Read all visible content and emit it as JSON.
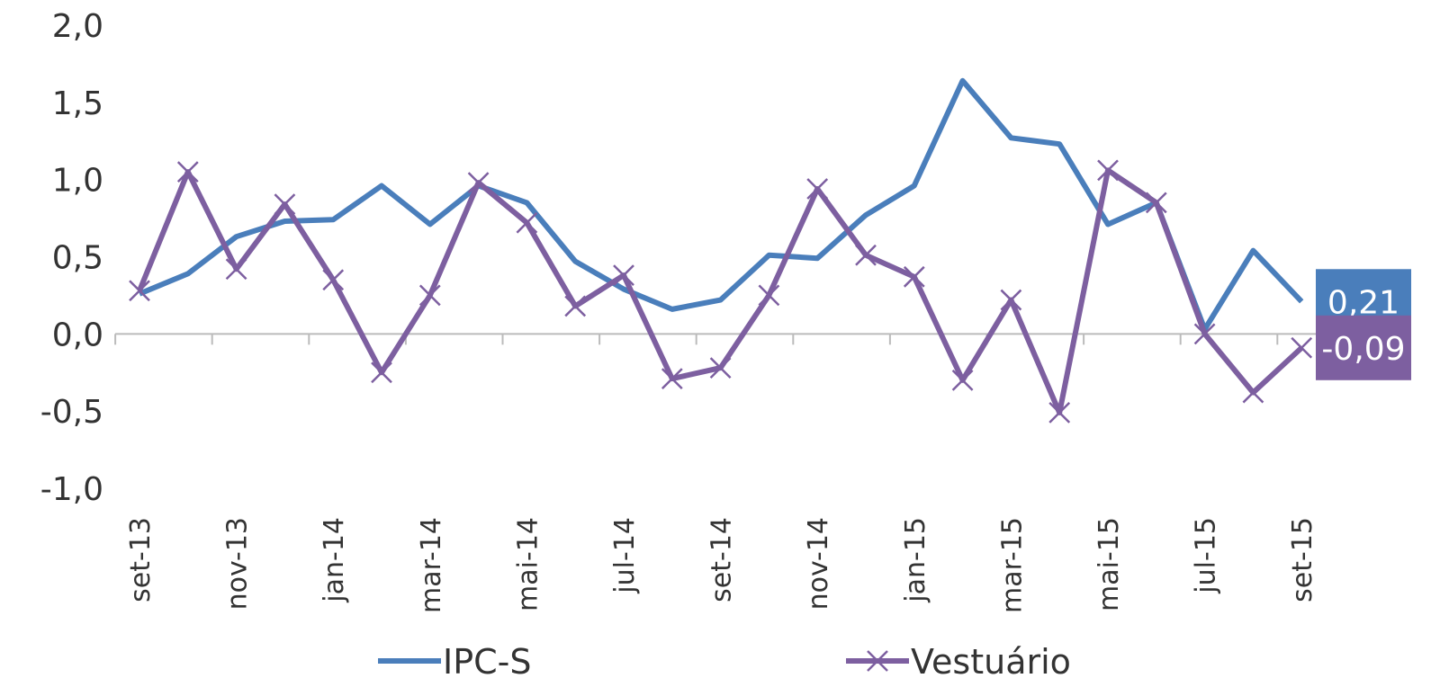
{
  "chart_data": {
    "type": "line",
    "categories": [
      "set-13",
      null,
      "nov-13",
      null,
      "jan-14",
      null,
      "mar-14",
      null,
      "mai-14",
      null,
      "jul-14",
      null,
      "set-14",
      null,
      "nov-14",
      null,
      "jan-15",
      null,
      "mar-15",
      null,
      "mai-15",
      null,
      "jul-15",
      null,
      "set-15"
    ],
    "series": [
      {
        "name": "IPC-S",
        "color": "#4a7ebb",
        "marker": "none",
        "values": [
          0.26,
          0.39,
          0.63,
          0.73,
          0.74,
          0.96,
          0.71,
          0.96,
          0.85,
          0.47,
          0.29,
          0.16,
          0.22,
          0.51,
          0.49,
          0.77,
          0.96,
          1.64,
          1.27,
          1.23,
          0.71,
          0.85,
          0.03,
          0.54,
          0.21
        ],
        "value_labels": [
          null,
          null,
          null,
          null,
          null,
          null,
          null,
          null,
          null,
          null,
          null,
          null,
          null,
          null,
          null,
          null,
          null,
          null,
          null,
          null,
          null,
          null,
          null,
          null,
          "0,21"
        ]
      },
      {
        "name": "Vestuário",
        "color": "#7d5fa0",
        "marker": "x",
        "values": [
          0.28,
          1.05,
          0.42,
          0.84,
          0.35,
          -0.25,
          0.25,
          0.98,
          0.72,
          0.18,
          0.38,
          -0.29,
          -0.22,
          0.25,
          0.94,
          0.51,
          0.37,
          -0.3,
          0.22,
          -0.51,
          1.06,
          0.85,
          0.0,
          -0.38,
          -0.09
        ],
        "value_labels": [
          null,
          null,
          null,
          null,
          null,
          null,
          null,
          null,
          null,
          null,
          null,
          null,
          null,
          null,
          null,
          null,
          null,
          null,
          null,
          null,
          null,
          null,
          null,
          null,
          "-0,09"
        ]
      }
    ],
    "ylim": [
      -1.0,
      2.0
    ],
    "yticks": [
      {
        "value": -1.0,
        "label": "-1,0"
      },
      {
        "value": -0.5,
        "label": "-0,5"
      },
      {
        "value": 0.0,
        "label": "0,0"
      },
      {
        "value": 0.5,
        "label": "0,5"
      },
      {
        "value": 1.0,
        "label": "1,0"
      },
      {
        "value": 1.5,
        "label": "1,5"
      },
      {
        "value": 2.0,
        "label": "2,0"
      }
    ],
    "grid": false,
    "legend": "bottom"
  }
}
